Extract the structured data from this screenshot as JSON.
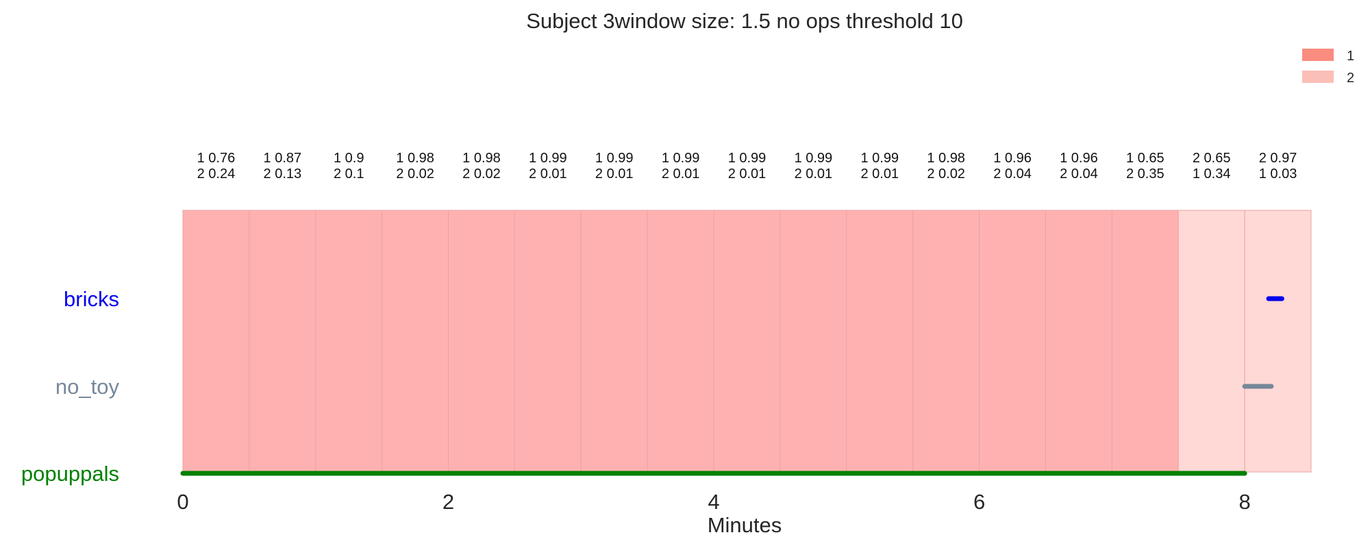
{
  "chart_data": {
    "type": "timeline",
    "title": "Subject 3window size: 1.5 no ops threshold 10",
    "xlabel": "Minutes",
    "xlim": [
      0,
      8.5
    ],
    "xticks": [
      "0",
      "2",
      "4",
      "6",
      "8"
    ],
    "xtick_values": [
      0,
      2,
      4,
      6,
      8
    ],
    "grid": false,
    "legend_position": "top-right",
    "legend": [
      {
        "label": "1",
        "color": "#fa8072",
        "opacity": 0.9
      },
      {
        "label": "2",
        "color": "#fa8072",
        "opacity": 0.5
      }
    ],
    "state_colors": {
      "1": "#ffb1b1",
      "2": "#ffd9d6"
    },
    "windows": [
      {
        "start": 0.0,
        "end": 0.5,
        "state": "1",
        "line1": "1 0.76",
        "line2": "2 0.24"
      },
      {
        "start": 0.5,
        "end": 1.0,
        "state": "1",
        "line1": "1 0.87",
        "line2": "2 0.13"
      },
      {
        "start": 1.0,
        "end": 1.5,
        "state": "1",
        "line1": "1 0.9",
        "line2": "2 0.1"
      },
      {
        "start": 1.5,
        "end": 2.0,
        "state": "1",
        "line1": "1 0.98",
        "line2": "2 0.02"
      },
      {
        "start": 2.0,
        "end": 2.5,
        "state": "1",
        "line1": "1 0.98",
        "line2": "2 0.02"
      },
      {
        "start": 2.5,
        "end": 3.0,
        "state": "1",
        "line1": "1 0.99",
        "line2": "2 0.01"
      },
      {
        "start": 3.0,
        "end": 3.5,
        "state": "1",
        "line1": "1 0.99",
        "line2": "2 0.01"
      },
      {
        "start": 3.5,
        "end": 4.0,
        "state": "1",
        "line1": "1 0.99",
        "line2": "2 0.01"
      },
      {
        "start": 4.0,
        "end": 4.5,
        "state": "1",
        "line1": "1 0.99",
        "line2": "2 0.01"
      },
      {
        "start": 4.5,
        "end": 5.0,
        "state": "1",
        "line1": "1 0.99",
        "line2": "2 0.01"
      },
      {
        "start": 5.0,
        "end": 5.5,
        "state": "1",
        "line1": "1 0.99",
        "line2": "2 0.01"
      },
      {
        "start": 5.5,
        "end": 6.0,
        "state": "1",
        "line1": "1 0.98",
        "line2": "2 0.02"
      },
      {
        "start": 6.0,
        "end": 6.5,
        "state": "1",
        "line1": "1 0.96",
        "line2": "2 0.04"
      },
      {
        "start": 6.5,
        "end": 7.0,
        "state": "1",
        "line1": "1 0.96",
        "line2": "2 0.04"
      },
      {
        "start": 7.0,
        "end": 7.5,
        "state": "1",
        "line1": "1 0.65",
        "line2": "2 0.35"
      },
      {
        "start": 7.5,
        "end": 8.0,
        "state": "2",
        "line1": "2 0.65",
        "line2": "1 0.34"
      },
      {
        "start": 8.0,
        "end": 8.5,
        "state": "2",
        "line1": "2 0.97",
        "line2": "1 0.03"
      }
    ],
    "rows": [
      {
        "label": "bricks",
        "color": "#0000ee",
        "segments": [
          [
            8.18,
            8.28
          ]
        ]
      },
      {
        "label": "no_toy",
        "color": "#778899",
        "segments": [
          [
            8.0,
            8.2
          ]
        ]
      },
      {
        "label": "popuppals",
        "color": "#008000",
        "segments": [
          [
            0.0,
            8.0
          ]
        ]
      }
    ]
  }
}
